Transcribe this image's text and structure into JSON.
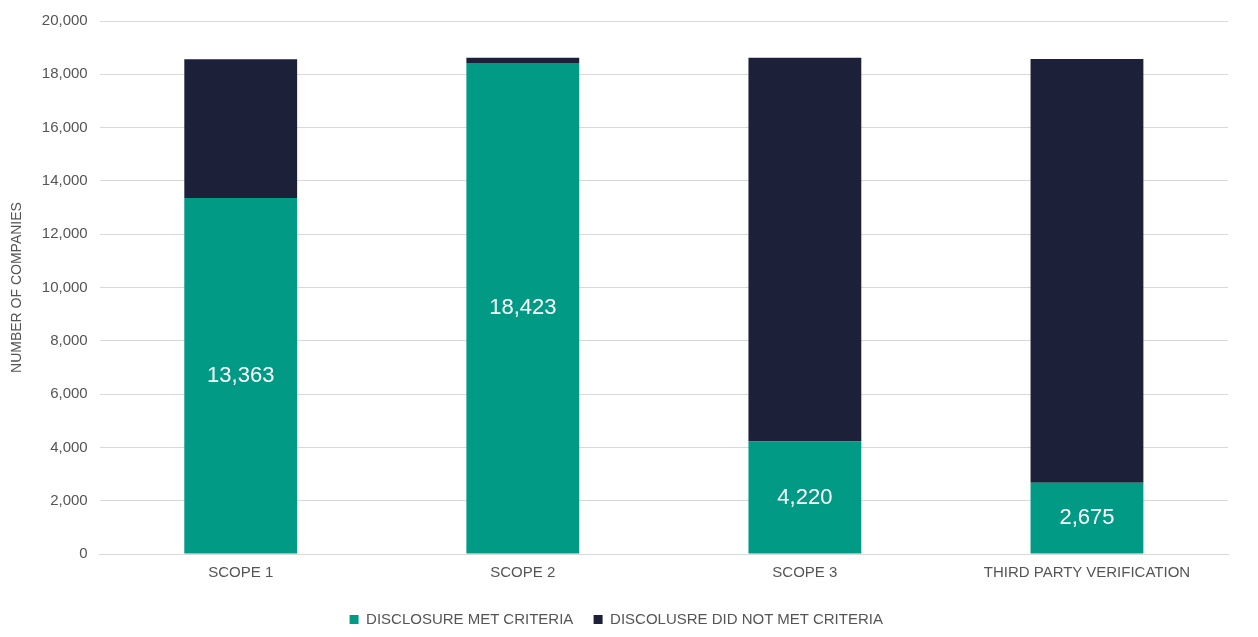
{
  "chart_data": {
    "type": "bar",
    "stacked": true,
    "ylabel": "NUMBER OF COMPANIES",
    "categories": [
      "SCOPE 1",
      "SCOPE 2",
      "SCOPE 3",
      "THIRD PARTY VERIFICATION"
    ],
    "series": [
      {
        "name": "DISCLOSURE MET CRITERIA",
        "color": "#009a85",
        "values": [
          13363,
          18423,
          4220,
          2675
        ],
        "value_labels": [
          "13,363",
          "18,423",
          "4,220",
          "2,675"
        ]
      },
      {
        "name": "DISCOLUSRE DID NOT MET CRITERIA",
        "color": "#1c2139",
        "values": [
          5200,
          200,
          14400,
          15900
        ]
      }
    ],
    "ylim": [
      0,
      20000
    ],
    "yticks": [
      {
        "value": 0,
        "label": "0"
      },
      {
        "value": 2000,
        "label": "2,000"
      },
      {
        "value": 4000,
        "label": "4,000"
      },
      {
        "value": 6000,
        "label": "6,000"
      },
      {
        "value": 8000,
        "label": "8,000"
      },
      {
        "value": 10000,
        "label": "10,000"
      },
      {
        "value": 12000,
        "label": "12,000"
      },
      {
        "value": 14000,
        "label": "14,000"
      },
      {
        "value": 16000,
        "label": "16,000"
      },
      {
        "value": 18000,
        "label": "18,000"
      },
      {
        "value": 20000,
        "label": "20,000"
      }
    ],
    "grid": "y",
    "legend": "bottom"
  }
}
